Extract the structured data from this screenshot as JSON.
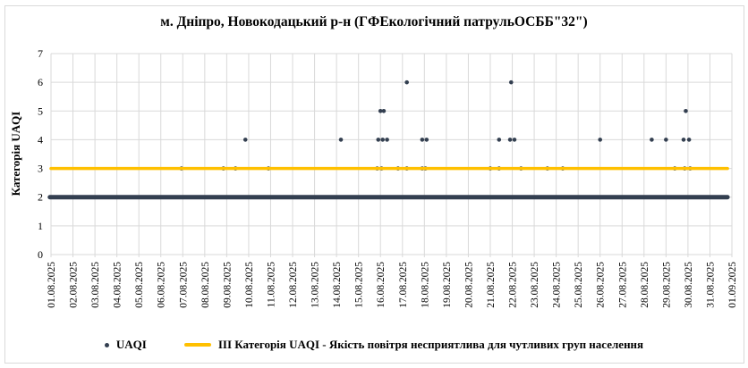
{
  "chart_data": {
    "type": "scatter",
    "title": "м. Дніпро, Новокодацький р-н (ГФЕкологічний патрульОСББ\"32\")",
    "xlabel": "",
    "ylabel": "Категорія UAQI",
    "ylim": [
      0,
      7
    ],
    "y_ticks": [
      0,
      1,
      2,
      3,
      4,
      5,
      6,
      7
    ],
    "x_tick_labels": [
      "01.08.2025",
      "02.08.2025",
      "03.08.2025",
      "04.08.2025",
      "05.08.2025",
      "06.08.2025",
      "07.08.2025",
      "08.08.2025",
      "09.08.2025",
      "10.08.2025",
      "11.08.2025",
      "12.08.2025",
      "13.08.2025",
      "14.08.2025",
      "15.08.2025",
      "16.08.2025",
      "17.08.2025",
      "18.08.2025",
      "19.08.2025",
      "20.08.2025",
      "21.08.2025",
      "22.08.2025",
      "23.08.2025",
      "24.08.2025",
      "25.08.2025",
      "26.08.2025",
      "27.08.2025",
      "28.08.2025",
      "29.08.2025",
      "30.08.2025",
      "31.08.2025",
      "01.09.2025"
    ],
    "grid": true,
    "legend_position": "bottom",
    "series": [
      {
        "name": "UAQI",
        "type": "scatter",
        "color": "#333F50",
        "marker_radius": 2.3,
        "points": [
          [
            6.94,
            3
          ],
          [
            8.85,
            3
          ],
          [
            9.4,
            3
          ],
          [
            10.9,
            3
          ],
          [
            15.85,
            3
          ],
          [
            16.05,
            3
          ],
          [
            16.8,
            3
          ],
          [
            17.2,
            3
          ],
          [
            17.9,
            3
          ],
          [
            18.05,
            3
          ],
          [
            21.0,
            3
          ],
          [
            21.4,
            3
          ],
          [
            22.4,
            3
          ],
          [
            23.6,
            3
          ],
          [
            24.3,
            3
          ],
          [
            29.4,
            3
          ],
          [
            29.85,
            3
          ],
          [
            30.1,
            3
          ],
          [
            9.85,
            4
          ],
          [
            14.2,
            4
          ],
          [
            15.9,
            4
          ],
          [
            16.1,
            4
          ],
          [
            16.3,
            4
          ],
          [
            17.9,
            4
          ],
          [
            18.1,
            4
          ],
          [
            21.4,
            4
          ],
          [
            21.9,
            4
          ],
          [
            22.1,
            4
          ],
          [
            26.0,
            4
          ],
          [
            28.35,
            4
          ],
          [
            29.0,
            4
          ],
          [
            29.8,
            4
          ],
          [
            30.05,
            4
          ],
          [
            16.0,
            5
          ],
          [
            16.15,
            5
          ],
          [
            29.9,
            5
          ],
          [
            17.2,
            6
          ],
          [
            21.95,
            6
          ]
        ],
        "dense_band": {
          "note": "continuous overlapping UAQI points at category 2 for the whole period",
          "y": 2,
          "x_start": 0.95,
          "x_end": 31.8,
          "stroke_width": 5
        }
      },
      {
        "name": "ІІІ Категорія UAQI - Якість повітря несприятлива для чутливих груп населення",
        "type": "line",
        "color": "#FFC000",
        "y": 3,
        "x_start": 1.0,
        "x_end": 31.8,
        "stroke_width": 3.5
      }
    ]
  },
  "legend": {
    "uaqi": "UAQI",
    "threshold": "ІІІ Категорія UAQI - Якість повітря несприятлива для чутливих груп населення"
  },
  "colors": {
    "points": "#333F50",
    "threshold_line": "#FFC000",
    "gridline": "#d9d9d9",
    "text": "#000000"
  }
}
